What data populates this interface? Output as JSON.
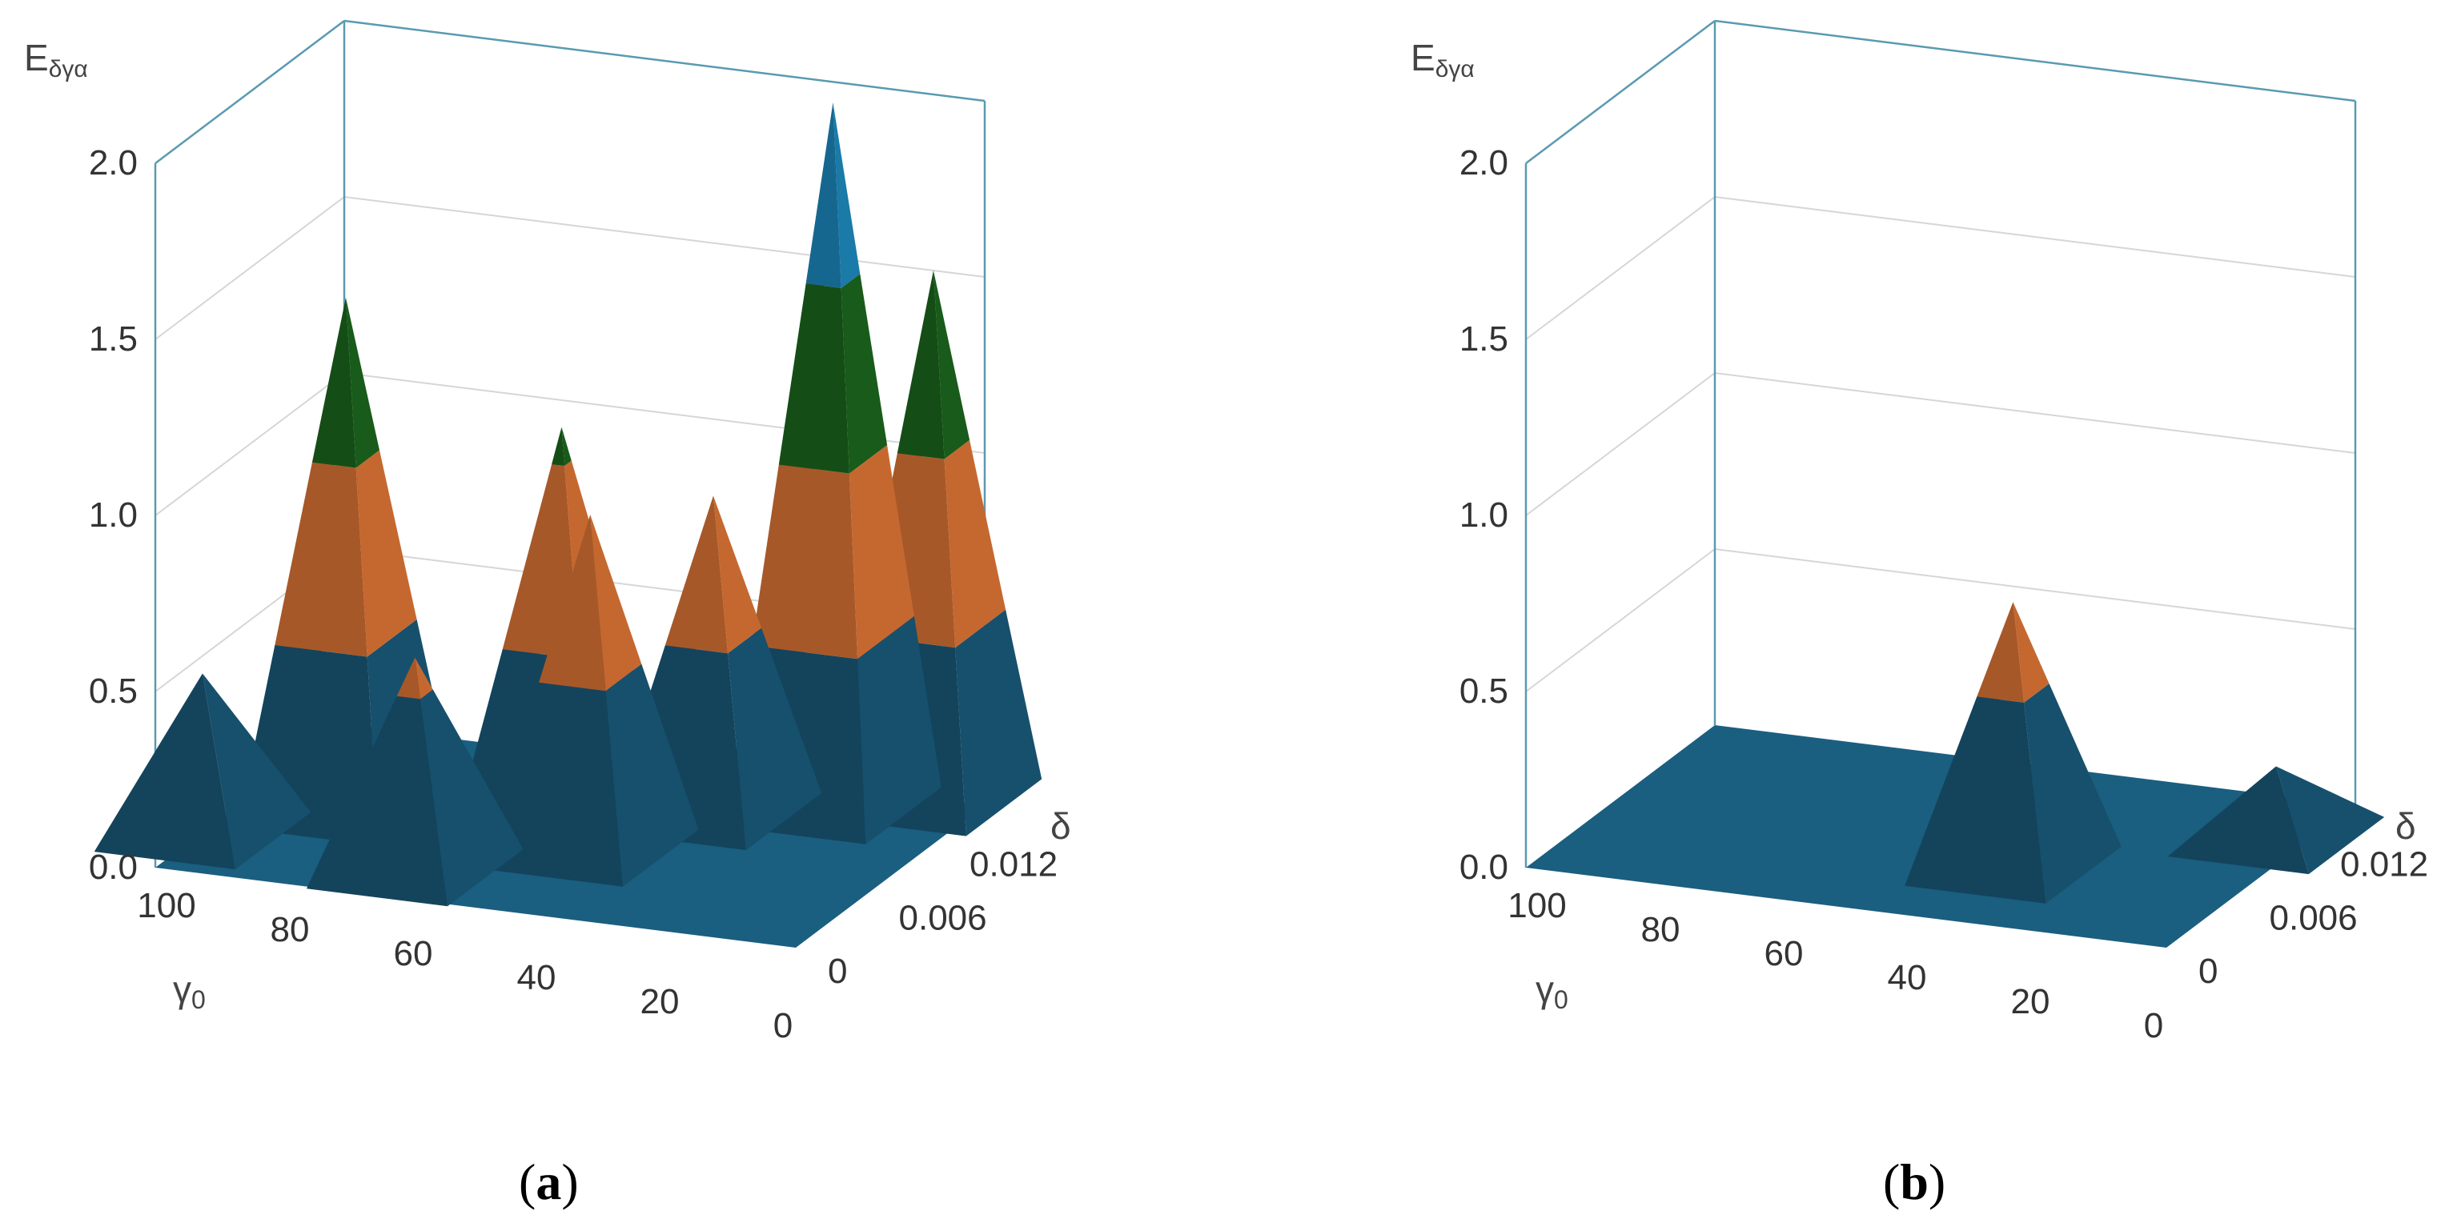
{
  "colors": {
    "band_0_05": "#1a5e80",
    "band_05_1": "#e87a37",
    "band_1_15": "#1d6b1f",
    "band_15_2": "#1f8fc6",
    "frame": "#5a9ab0",
    "grid": "#d6d6d6"
  },
  "chart_data": [
    {
      "type": "surface3d",
      "panel_label": "a",
      "caption_open": "(",
      "caption_close": ")",
      "zlabel": "E",
      "zlabel_sub": "δγα",
      "xlabel": "γ",
      "xlabel_sub": "0",
      "ylabel": "δ",
      "zlim": [
        0,
        2
      ],
      "z_ticks": [
        "0.0",
        "0.5",
        "1.0",
        "1.5",
        "2.0"
      ],
      "gamma_ticks": [
        "100",
        "80",
        "60",
        "40",
        "20",
        "0"
      ],
      "delta_ticks": [
        "0",
        "0.006",
        "0.012"
      ],
      "color_bands": [
        0,
        0.5,
        1.0,
        1.5,
        2.0
      ],
      "peaks": [
        {
          "gamma": 100,
          "delta": 0.004,
          "value": 0.45
        },
        {
          "gamma": 85,
          "delta": 0.008,
          "value": 1.45
        },
        {
          "gamma": 65,
          "delta": 0.003,
          "value": 0.6
        },
        {
          "gamma": 55,
          "delta": 0.01,
          "value": 1.1
        },
        {
          "gamma": 45,
          "delta": 0.007,
          "value": 0.95
        },
        {
          "gamma": 35,
          "delta": 0.012,
          "value": 0.9
        },
        {
          "gamma": 20,
          "delta": 0.014,
          "value": 2.0
        },
        {
          "gamma": 8,
          "delta": 0.016,
          "value": 1.5
        }
      ]
    },
    {
      "type": "surface3d",
      "panel_label": "b",
      "caption_open": "(",
      "caption_close": ")",
      "zlabel": "E",
      "zlabel_sub": "δγα",
      "xlabel": "γ",
      "xlabel_sub": "0",
      "ylabel": "δ",
      "zlim": [
        0,
        2
      ],
      "z_ticks": [
        "0.0",
        "0.5",
        "1.0",
        "1.5",
        "2.0"
      ],
      "gamma_ticks": [
        "100",
        "80",
        "60",
        "40",
        "20",
        "0"
      ],
      "delta_ticks": [
        "0",
        "0.006",
        "0.012"
      ],
      "color_bands": [
        0,
        0.5,
        1.0,
        1.5,
        2.0
      ],
      "peaks": [
        {
          "gamma": 35,
          "delta": 0.006,
          "value": 0.75
        },
        {
          "gamma": 5,
          "delta": 0.012,
          "value": 0.2
        }
      ]
    }
  ]
}
